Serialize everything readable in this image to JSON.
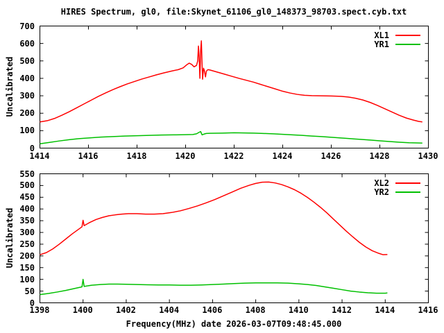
{
  "title": "HIRES Spectrum, gl0, file:Skynet_61106_gl0_148373_98703.spect.cyb.txt",
  "xlabel": "Frequency(MHz) date 2026-03-07T09:48:45.000",
  "colors": {
    "axis": "#000000",
    "background": "#ffffff",
    "series_red": "#ff0000",
    "series_green": "#00c000"
  },
  "chart_data": [
    {
      "type": "line",
      "ylabel": "Uncalibrated",
      "xlim": [
        1414,
        1430
      ],
      "ylim": [
        0,
        700
      ],
      "xticks": [
        1414,
        1416,
        1418,
        1420,
        1422,
        1424,
        1426,
        1428,
        1430
      ],
      "yticks": [
        0,
        100,
        200,
        300,
        400,
        500,
        600,
        700
      ],
      "grid": false,
      "legend_position": "top-right",
      "series": [
        {
          "name": "XL1",
          "color": "#ff0000",
          "points": [
            [
              1414.0,
              150
            ],
            [
              1414.3,
              157
            ],
            [
              1414.6,
              170
            ],
            [
              1414.9,
              188
            ],
            [
              1415.2,
              208
            ],
            [
              1415.5,
              230
            ],
            [
              1415.8,
              252
            ],
            [
              1416.1,
              274
            ],
            [
              1416.4,
              296
            ],
            [
              1416.7,
              316
            ],
            [
              1417.0,
              335
            ],
            [
              1417.3,
              352
            ],
            [
              1417.6,
              368
            ],
            [
              1417.9,
              382
            ],
            [
              1418.2,
              396
            ],
            [
              1418.5,
              408
            ],
            [
              1418.8,
              420
            ],
            [
              1419.1,
              431
            ],
            [
              1419.4,
              441
            ],
            [
              1419.7,
              450
            ],
            [
              1419.9,
              460
            ],
            [
              1420.05,
              478
            ],
            [
              1420.15,
              487
            ],
            [
              1420.25,
              480
            ],
            [
              1420.35,
              466
            ],
            [
              1420.45,
              474
            ],
            [
              1420.5,
              500
            ],
            [
              1420.53,
              585
            ],
            [
              1420.56,
              520
            ],
            [
              1420.59,
              400
            ],
            [
              1420.62,
              555
            ],
            [
              1420.65,
              615
            ],
            [
              1420.68,
              480
            ],
            [
              1420.7,
              395
            ],
            [
              1420.74,
              458
            ],
            [
              1420.78,
              442
            ],
            [
              1420.82,
              408
            ],
            [
              1420.86,
              442
            ],
            [
              1420.92,
              450
            ],
            [
              1421.0,
              448
            ],
            [
              1421.3,
              436
            ],
            [
              1421.6,
              424
            ],
            [
              1421.9,
              412
            ],
            [
              1422.2,
              400
            ],
            [
              1422.5,
              389
            ],
            [
              1422.8,
              378
            ],
            [
              1423.1,
              365
            ],
            [
              1423.4,
              352
            ],
            [
              1423.7,
              339
            ],
            [
              1424.0,
              326
            ],
            [
              1424.3,
              316
            ],
            [
              1424.6,
              308
            ],
            [
              1424.9,
              303
            ],
            [
              1425.2,
              301
            ],
            [
              1425.6,
              300
            ],
            [
              1426.0,
              299
            ],
            [
              1426.4,
              297
            ],
            [
              1426.7,
              293
            ],
            [
              1427.0,
              286
            ],
            [
              1427.3,
              276
            ],
            [
              1427.6,
              262
            ],
            [
              1427.9,
              245
            ],
            [
              1428.2,
              226
            ],
            [
              1428.5,
              207
            ],
            [
              1428.8,
              188
            ],
            [
              1429.1,
              172
            ],
            [
              1429.4,
              160
            ],
            [
              1429.6,
              153
            ],
            [
              1429.75,
              150
            ]
          ]
        },
        {
          "name": "YR1",
          "color": "#00c000",
          "points": [
            [
              1414.0,
              25
            ],
            [
              1414.4,
              33
            ],
            [
              1414.8,
              41
            ],
            [
              1415.2,
              48
            ],
            [
              1415.6,
              54
            ],
            [
              1416.0,
              58
            ],
            [
              1416.5,
              63
            ],
            [
              1417.0,
              66
            ],
            [
              1417.5,
              69
            ],
            [
              1418.0,
              71
            ],
            [
              1418.5,
              73
            ],
            [
              1419.0,
              75
            ],
            [
              1419.5,
              76
            ],
            [
              1420.0,
              77
            ],
            [
              1420.3,
              78
            ],
            [
              1420.45,
              82
            ],
            [
              1420.55,
              90
            ],
            [
              1420.62,
              95
            ],
            [
              1420.68,
              76
            ],
            [
              1420.75,
              80
            ],
            [
              1420.85,
              84
            ],
            [
              1421.0,
              85
            ],
            [
              1421.5,
              86
            ],
            [
              1422.0,
              88
            ],
            [
              1422.4,
              87
            ],
            [
              1422.8,
              86
            ],
            [
              1423.2,
              84
            ],
            [
              1423.6,
              82
            ],
            [
              1424.0,
              79
            ],
            [
              1424.4,
              76
            ],
            [
              1424.8,
              73
            ],
            [
              1425.2,
              69
            ],
            [
              1425.6,
              66
            ],
            [
              1426.0,
              62
            ],
            [
              1426.4,
              58
            ],
            [
              1426.8,
              54
            ],
            [
              1427.2,
              50
            ],
            [
              1427.6,
              46
            ],
            [
              1428.0,
              42
            ],
            [
              1428.4,
              38
            ],
            [
              1428.8,
              34
            ],
            [
              1429.2,
              31
            ],
            [
              1429.5,
              30
            ],
            [
              1429.75,
              29
            ]
          ]
        }
      ]
    },
    {
      "type": "line",
      "ylabel": "Uncalibrated",
      "xlim": [
        1398,
        1416
      ],
      "ylim": [
        0,
        550
      ],
      "xticks": [
        1398,
        1400,
        1402,
        1404,
        1406,
        1408,
        1410,
        1412,
        1414,
        1416
      ],
      "yticks": [
        0,
        50,
        100,
        150,
        200,
        250,
        300,
        350,
        400,
        450,
        500,
        550
      ],
      "grid": false,
      "legend_position": "top-right",
      "series": [
        {
          "name": "XL2",
          "color": "#ff0000",
          "points": [
            [
              1398.0,
              205
            ],
            [
              1398.3,
              214
            ],
            [
              1398.6,
              230
            ],
            [
              1398.9,
              250
            ],
            [
              1399.2,
              272
            ],
            [
              1399.5,
              294
            ],
            [
              1399.8,
              314
            ],
            [
              1399.95,
              324
            ],
            [
              1400.0,
              352
            ],
            [
              1400.05,
              329
            ],
            [
              1400.3,
              342
            ],
            [
              1400.6,
              355
            ],
            [
              1400.9,
              364
            ],
            [
              1401.2,
              371
            ],
            [
              1401.5,
              375
            ],
            [
              1401.8,
              378
            ],
            [
              1402.1,
              380
            ],
            [
              1402.5,
              380
            ],
            [
              1402.9,
              378
            ],
            [
              1403.3,
              378
            ],
            [
              1403.7,
              380
            ],
            [
              1404.1,
              385
            ],
            [
              1404.5,
              392
            ],
            [
              1404.9,
              402
            ],
            [
              1405.3,
              413
            ],
            [
              1405.7,
              426
            ],
            [
              1406.1,
              440
            ],
            [
              1406.5,
              456
            ],
            [
              1406.9,
              472
            ],
            [
              1407.3,
              488
            ],
            [
              1407.7,
              501
            ],
            [
              1408.0,
              509
            ],
            [
              1408.3,
              514
            ],
            [
              1408.6,
              515
            ],
            [
              1408.9,
              511
            ],
            [
              1409.2,
              504
            ],
            [
              1409.5,
              494
            ],
            [
              1409.8,
              482
            ],
            [
              1410.1,
              467
            ],
            [
              1410.4,
              449
            ],
            [
              1410.7,
              429
            ],
            [
              1411.0,
              407
            ],
            [
              1411.3,
              383
            ],
            [
              1411.6,
              357
            ],
            [
              1411.9,
              331
            ],
            [
              1412.2,
              305
            ],
            [
              1412.5,
              281
            ],
            [
              1412.8,
              258
            ],
            [
              1413.1,
              238
            ],
            [
              1413.4,
              222
            ],
            [
              1413.7,
              211
            ],
            [
              1413.9,
              205
            ],
            [
              1414.1,
              206
            ]
          ]
        },
        {
          "name": "YR2",
          "color": "#00c000",
          "points": [
            [
              1398.0,
              35
            ],
            [
              1398.4,
              40
            ],
            [
              1398.8,
              46
            ],
            [
              1399.2,
              53
            ],
            [
              1399.6,
              61
            ],
            [
              1399.95,
              68
            ],
            [
              1400.0,
              100
            ],
            [
              1400.05,
              70
            ],
            [
              1400.4,
              75
            ],
            [
              1400.8,
              78
            ],
            [
              1401.2,
              80
            ],
            [
              1401.6,
              80
            ],
            [
              1402.0,
              79
            ],
            [
              1402.5,
              78
            ],
            [
              1403.0,
              77
            ],
            [
              1403.5,
              76
            ],
            [
              1404.0,
              76
            ],
            [
              1404.5,
              75
            ],
            [
              1405.0,
              75
            ],
            [
              1405.5,
              76
            ],
            [
              1406.0,
              78
            ],
            [
              1406.5,
              80
            ],
            [
              1407.0,
              82
            ],
            [
              1407.5,
              84
            ],
            [
              1408.0,
              85
            ],
            [
              1408.5,
              85
            ],
            [
              1409.0,
              85
            ],
            [
              1409.5,
              84
            ],
            [
              1410.0,
              81
            ],
            [
              1410.4,
              78
            ],
            [
              1410.8,
              74
            ],
            [
              1411.2,
              68
            ],
            [
              1411.6,
              62
            ],
            [
              1412.0,
              56
            ],
            [
              1412.4,
              50
            ],
            [
              1412.8,
              46
            ],
            [
              1413.2,
              43
            ],
            [
              1413.6,
              41
            ],
            [
              1414.0,
              41
            ],
            [
              1414.1,
              42
            ]
          ]
        }
      ]
    }
  ]
}
